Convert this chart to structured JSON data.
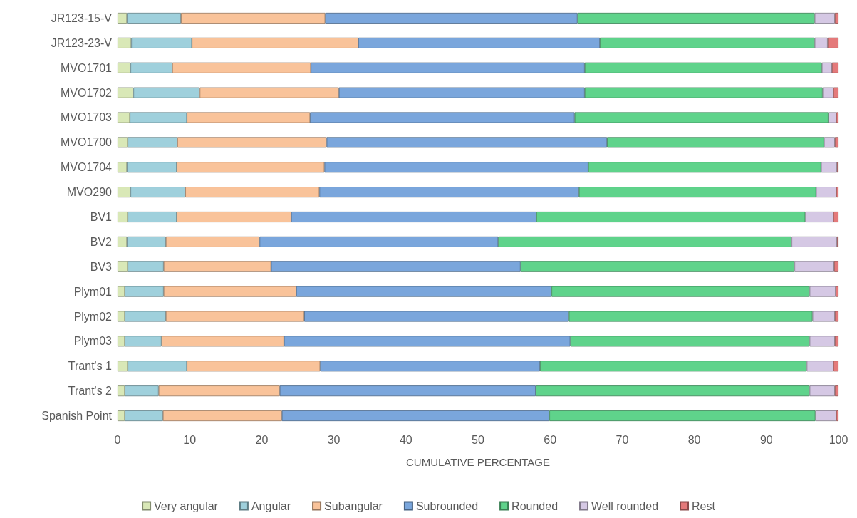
{
  "chart_data": {
    "type": "bar",
    "orientation": "horizontal",
    "stacked": true,
    "xlabel": "CUMULATIVE PERCENTAGE",
    "xlim": [
      0,
      100
    ],
    "xticks": [
      0,
      10,
      20,
      30,
      40,
      50,
      60,
      70,
      80,
      90,
      100
    ],
    "grid": false,
    "legend": "bottom",
    "categories": [
      "JR123-15-V",
      "JR123-23-V",
      "MVO1701",
      "MVO1702",
      "MVO1703",
      "MVO1700",
      "MVO1704",
      "MVO290",
      "BV1",
      "BV2",
      "BV3",
      "Plym01",
      "Plym02",
      "Plym03",
      "Trant's 1",
      "Trant's 2",
      "Spanish Point"
    ],
    "series": [
      {
        "name": "Very angular",
        "color": "#d9e8b7",
        "values": [
          1.3,
          1.9,
          1.8,
          2.2,
          1.7,
          1.4,
          1.3,
          1.8,
          1.4,
          1.3,
          1.4,
          1.0,
          1.0,
          1.0,
          1.4,
          1.0,
          1.0
        ]
      },
      {
        "name": "Angular",
        "color": "#9fd0dc",
        "values": [
          7.5,
          8.4,
          5.8,
          9.2,
          7.9,
          6.9,
          6.9,
          7.6,
          6.8,
          5.4,
          5.0,
          5.4,
          5.7,
          5.1,
          8.2,
          4.7,
          5.3
        ]
      },
      {
        "name": "Subangular",
        "color": "#f9c39a",
        "values": [
          20.0,
          23.1,
          19.2,
          19.3,
          17.1,
          20.7,
          20.5,
          18.6,
          15.9,
          13.0,
          14.9,
          18.4,
          19.2,
          17.0,
          18.5,
          16.8,
          16.5
        ]
      },
      {
        "name": "Subrounded",
        "color": "#7aa6dc",
        "values": [
          35.0,
          33.5,
          38.0,
          34.1,
          36.7,
          38.9,
          36.6,
          36.0,
          34.0,
          33.1,
          34.6,
          35.4,
          36.7,
          39.7,
          30.5,
          35.5,
          37.1
        ]
      },
      {
        "name": "Rounded",
        "color": "#5fd38b",
        "values": [
          32.9,
          29.8,
          32.9,
          33.0,
          35.2,
          30.1,
          32.3,
          32.9,
          37.3,
          40.7,
          38.0,
          35.8,
          33.8,
          33.2,
          37.0,
          38.0,
          36.9
        ]
      },
      {
        "name": "Well rounded",
        "color": "#d5c8e4",
        "values": [
          2.8,
          1.8,
          1.4,
          1.5,
          1.1,
          1.5,
          2.2,
          2.8,
          3.9,
          6.3,
          5.5,
          3.6,
          3.1,
          3.5,
          3.7,
          3.5,
          2.9
        ]
      },
      {
        "name": "Rest",
        "color": "#e4797a",
        "values": [
          0.5,
          1.5,
          0.9,
          0.7,
          0.3,
          0.5,
          0.2,
          0.3,
          0.7,
          0.2,
          0.6,
          0.4,
          0.5,
          0.5,
          0.7,
          0.5,
          0.3
        ]
      }
    ]
  }
}
